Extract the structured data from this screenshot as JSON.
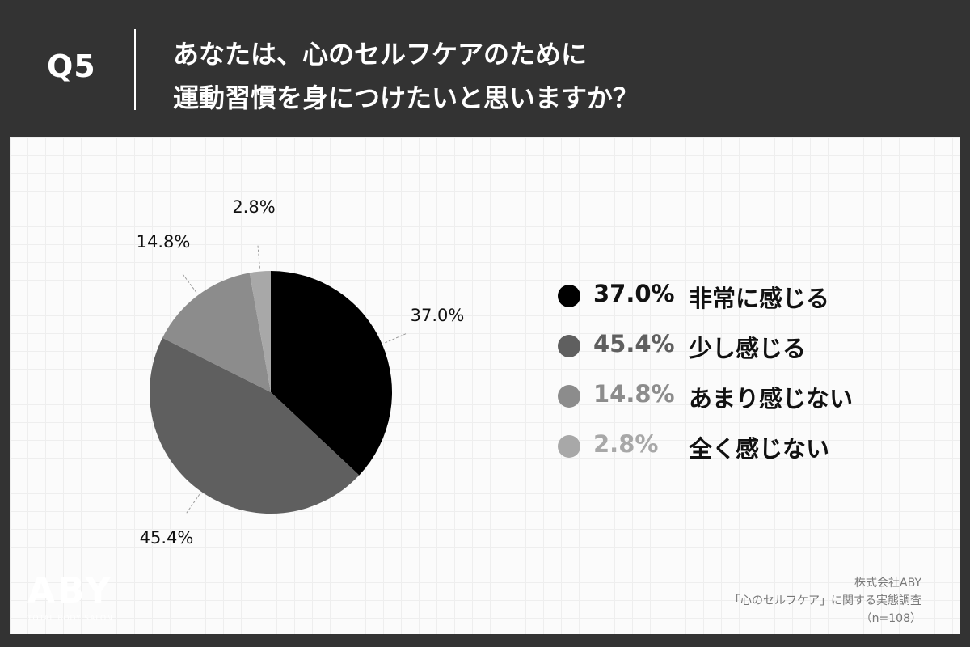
{
  "header": {
    "q_label": "Q5",
    "question_line1": "あなたは、心のセルフケアのために",
    "question_line2": "運動習慣を身につけたいと思いますか？"
  },
  "chart_data": {
    "type": "pie",
    "slices": [
      {
        "label": "非常に感じる",
        "value": 37.0,
        "pct_text": "37.0%",
        "color": "#000000",
        "legend_text_color": "#111111"
      },
      {
        "label": "少し感じる",
        "value": 45.4,
        "pct_text": "45.4%",
        "color": "#5f5f5f",
        "legend_text_color": "#5f5f5f"
      },
      {
        "label": "あまり感じない",
        "value": 14.8,
        "pct_text": "14.8%",
        "color": "#8c8c8c",
        "legend_text_color": "#8c8c8c"
      },
      {
        "label": "全く感じない",
        "value": 2.8,
        "pct_text": "2.8%",
        "color": "#a8a8a8",
        "legend_text_color": "#a8a8a8"
      }
    ],
    "start_angle": "12 o'clock",
    "direction": "clockwise",
    "legend_position": "right"
  },
  "logo": {
    "mark": "ABY",
    "sub": "TOTAL BODY SALON"
  },
  "source": {
    "company": "株式会社ABY",
    "survey": "「心のセルフケア」に関する実態調査",
    "sample": "（n=108）"
  }
}
